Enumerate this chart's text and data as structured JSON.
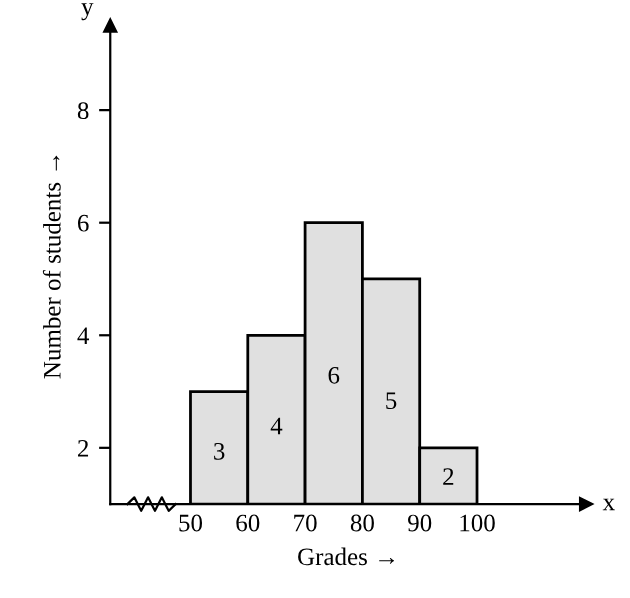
{
  "chart_data": {
    "type": "histogram",
    "bins": [
      50,
      60,
      70,
      80,
      90,
      100
    ],
    "values": [
      3,
      4,
      6,
      5,
      2
    ],
    "color": "#e0e0e0",
    "data_labels": true,
    "xlabel": "Grades →",
    "ylabel": "Number of students →",
    "annotations": [
      "x",
      "y"
    ],
    "xlim": [
      36,
      119
    ],
    "ylim": [
      1,
      9.5
    ],
    "xticks": [
      50,
      60,
      70,
      80,
      90,
      100
    ],
    "yticks": [
      2,
      4,
      6,
      8
    ],
    "grid": false
  }
}
